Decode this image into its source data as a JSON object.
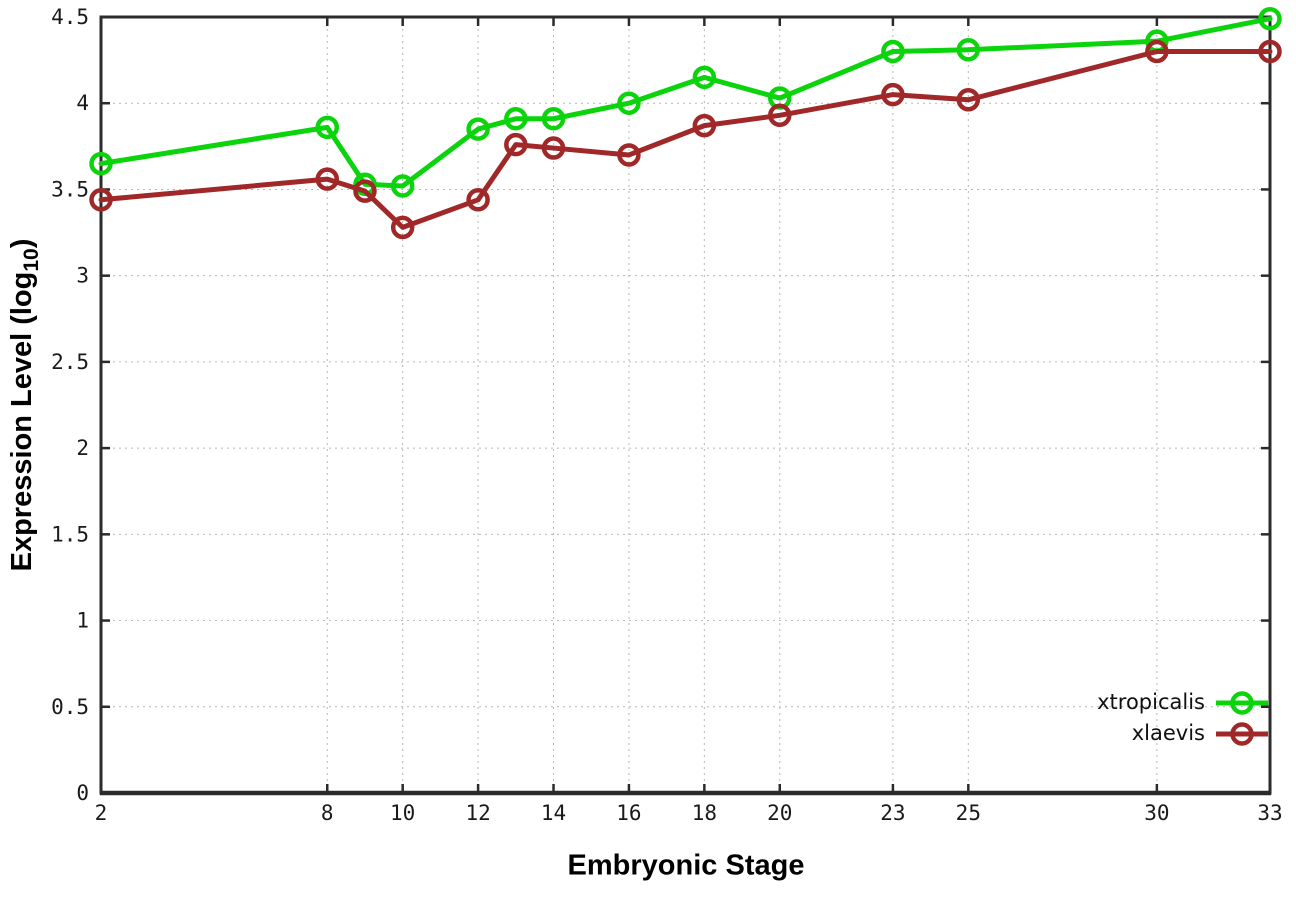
{
  "chart_data": {
    "type": "line",
    "title": "",
    "xlabel": "Embryonic Stage",
    "ylabel": "Expression Level (log10)",
    "ylabel_parts": {
      "main": "Expression Level (log",
      "sub": "10",
      "end": ")"
    },
    "x": [
      2,
      8,
      9,
      10,
      12,
      13,
      14,
      16,
      18,
      20,
      23,
      25,
      30,
      33
    ],
    "series": [
      {
        "name": "xtropicalis",
        "color": "#0cd40c",
        "values": [
          3.65,
          3.86,
          3.53,
          3.52,
          3.85,
          3.91,
          3.91,
          4.0,
          4.15,
          4.03,
          4.3,
          4.31,
          4.36,
          4.49
        ]
      },
      {
        "name": "xlaevis",
        "color": "#a02828",
        "values": [
          3.44,
          3.56,
          3.49,
          3.28,
          3.44,
          3.76,
          3.74,
          3.7,
          3.87,
          3.93,
          4.05,
          4.02,
          4.3,
          4.3
        ]
      }
    ],
    "xticks": [
      2,
      8,
      10,
      12,
      14,
      16,
      18,
      20,
      23,
      25,
      30,
      33
    ],
    "xtick_labels": [
      "2",
      "8",
      "10",
      "12",
      "14",
      "16",
      "18",
      "20",
      "23",
      "25",
      "30",
      "33"
    ],
    "yticks": [
      0,
      0.5,
      1,
      1.5,
      2,
      2.5,
      3,
      3.5,
      4,
      4.5
    ],
    "ytick_labels": [
      "0",
      "0.5",
      "1",
      "1.5",
      "2",
      "2.5",
      "3",
      "3.5",
      "4",
      "4.5"
    ],
    "xlim": [
      2,
      33
    ],
    "ylim": [
      0,
      4.5
    ],
    "grid": true,
    "marker": "open-circle",
    "legend_position": "bottom-right"
  },
  "colors": {
    "background": "#ffffff",
    "border": "#2b2b2b",
    "grid": "#b8b8b8",
    "tick_text": "#1a1a1a"
  }
}
